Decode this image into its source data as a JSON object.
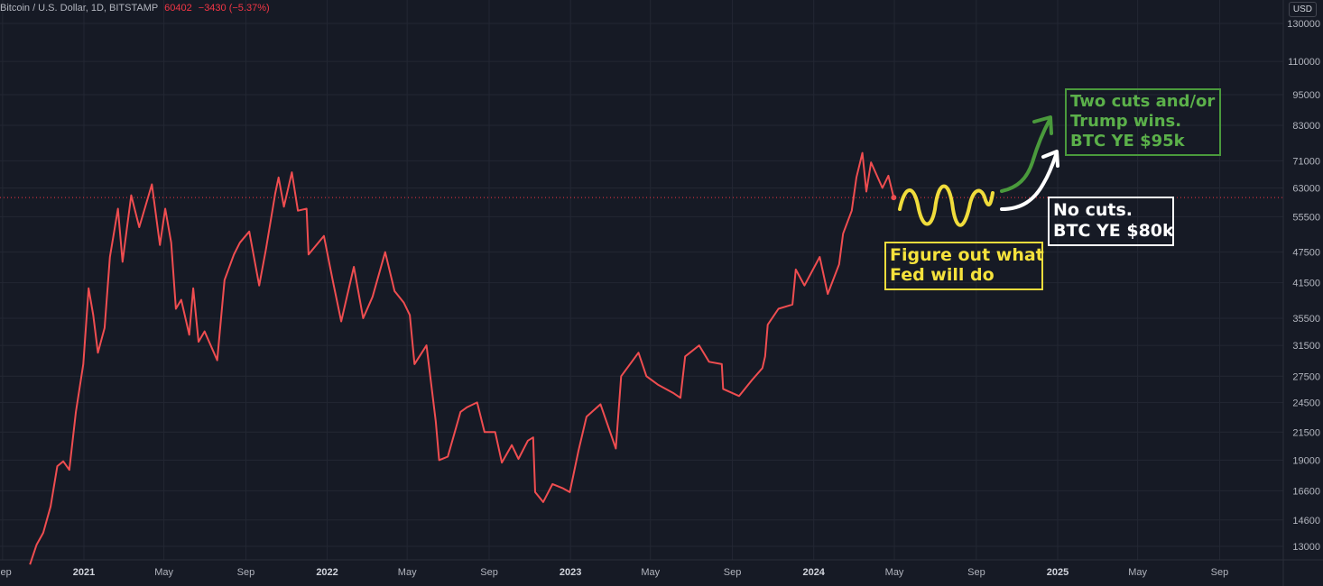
{
  "header": {
    "symbol": "Bitcoin / U.S. Dollar, 1D, BITSTAMP",
    "price": "60402",
    "change": "−3430 (−5.37%)"
  },
  "currency": "USD",
  "colors": {
    "background": "#161a25",
    "grid": "#232733",
    "price_line": "#ef4d50",
    "last_price_line": "#f23645",
    "green": "#4a9a3c",
    "yellow": "#f0dc3c",
    "white": "#ffffff"
  },
  "annotations": {
    "green_note": [
      "Two cuts and/or",
      "Trump wins.",
      "BTC YE $95k"
    ],
    "white_note": [
      "No cuts.",
      "BTC YE $80k"
    ],
    "yellow_note": [
      "Figure out what",
      "Fed will do"
    ]
  },
  "chart_data": {
    "type": "line",
    "title": "",
    "xlabel": "",
    "ylabel": "",
    "log_scale": true,
    "ylim": [
      12000,
      150000
    ],
    "xlim": [
      "2020-09-01",
      "2025-11-01"
    ],
    "x_ticks": [
      {
        "date": "2020-09-01",
        "label": "Sep",
        "bold": false
      },
      {
        "date": "2021-01-01",
        "label": "2021",
        "bold": true
      },
      {
        "date": "2021-05-01",
        "label": "May",
        "bold": false
      },
      {
        "date": "2021-09-01",
        "label": "Sep",
        "bold": false
      },
      {
        "date": "2022-01-01",
        "label": "2022",
        "bold": true
      },
      {
        "date": "2022-05-01",
        "label": "May",
        "bold": false
      },
      {
        "date": "2022-09-01",
        "label": "Sep",
        "bold": false
      },
      {
        "date": "2023-01-01",
        "label": "2023",
        "bold": true
      },
      {
        "date": "2023-05-01",
        "label": "May",
        "bold": false
      },
      {
        "date": "2023-09-01",
        "label": "Sep",
        "bold": false
      },
      {
        "date": "2024-01-01",
        "label": "2024",
        "bold": true
      },
      {
        "date": "2024-05-01",
        "label": "May",
        "bold": false
      },
      {
        "date": "2024-09-01",
        "label": "Sep",
        "bold": false
      },
      {
        "date": "2025-01-01",
        "label": "2025",
        "bold": true
      },
      {
        "date": "2025-05-01",
        "label": "May",
        "bold": false
      },
      {
        "date": "2025-09-01",
        "label": "Sep",
        "bold": false
      }
    ],
    "y_ticks": [
      13000,
      14600,
      16600,
      19000,
      21500,
      24500,
      27500,
      31500,
      35500,
      41500,
      47500,
      55500,
      63000,
      71000,
      83000,
      95000,
      110000,
      130000
    ],
    "grid": true,
    "last_price": 60402,
    "series": [
      {
        "points": [
          [
            "2020-10-12",
            12000
          ],
          [
            "2020-10-22",
            13100
          ],
          [
            "2020-11-01",
            13800
          ],
          [
            "2020-11-12",
            15500
          ],
          [
            "2020-11-22",
            18500
          ],
          [
            "2020-12-01",
            18900
          ],
          [
            "2020-12-10",
            18200
          ],
          [
            "2020-12-20",
            23500
          ],
          [
            "2020-12-31",
            29000
          ],
          [
            "2021-01-08",
            40500
          ],
          [
            "2021-01-15",
            36000
          ],
          [
            "2021-01-22",
            30500
          ],
          [
            "2021-02-01",
            34000
          ],
          [
            "2021-02-09",
            46500
          ],
          [
            "2021-02-21",
            57500
          ],
          [
            "2021-02-28",
            45500
          ],
          [
            "2021-03-13",
            61000
          ],
          [
            "2021-03-25",
            53000
          ],
          [
            "2021-04-13",
            64000
          ],
          [
            "2021-04-25",
            49000
          ],
          [
            "2021-05-03",
            57500
          ],
          [
            "2021-05-12",
            49500
          ],
          [
            "2021-05-19",
            37000
          ],
          [
            "2021-05-27",
            38500
          ],
          [
            "2021-06-08",
            33000
          ],
          [
            "2021-06-14",
            40500
          ],
          [
            "2021-06-22",
            32000
          ],
          [
            "2021-07-01",
            33500
          ],
          [
            "2021-07-20",
            29500
          ],
          [
            "2021-07-31",
            42000
          ],
          [
            "2021-08-14",
            47000
          ],
          [
            "2021-08-23",
            49500
          ],
          [
            "2021-09-06",
            52000
          ],
          [
            "2021-09-21",
            41000
          ],
          [
            "2021-10-01",
            48000
          ],
          [
            "2021-10-15",
            61500
          ],
          [
            "2021-10-20",
            66000
          ],
          [
            "2021-10-28",
            58000
          ],
          [
            "2021-11-09",
            67500
          ],
          [
            "2021-11-18",
            57000
          ],
          [
            "2021-12-01",
            57500
          ],
          [
            "2021-12-04",
            47000
          ],
          [
            "2021-12-27",
            51000
          ],
          [
            "2022-01-10",
            41500
          ],
          [
            "2022-01-22",
            35000
          ],
          [
            "2022-02-10",
            44500
          ],
          [
            "2022-02-24",
            35500
          ],
          [
            "2022-03-10",
            39000
          ],
          [
            "2022-03-29",
            47500
          ],
          [
            "2022-04-12",
            40000
          ],
          [
            "2022-04-26",
            38000
          ],
          [
            "2022-05-05",
            36000
          ],
          [
            "2022-05-12",
            29000
          ],
          [
            "2022-05-30",
            31500
          ],
          [
            "2022-06-13",
            22500
          ],
          [
            "2022-06-18",
            19000
          ],
          [
            "2022-07-01",
            19300
          ],
          [
            "2022-07-20",
            23500
          ],
          [
            "2022-07-30",
            24000
          ],
          [
            "2022-08-14",
            24500
          ],
          [
            "2022-08-25",
            21500
          ],
          [
            "2022-09-10",
            21500
          ],
          [
            "2022-09-20",
            18800
          ],
          [
            "2022-10-05",
            20300
          ],
          [
            "2022-10-15",
            19100
          ],
          [
            "2022-10-29",
            20700
          ],
          [
            "2022-11-06",
            21000
          ],
          [
            "2022-11-09",
            16500
          ],
          [
            "2022-11-21",
            15800
          ],
          [
            "2022-12-05",
            17100
          ],
          [
            "2022-12-20",
            16800
          ],
          [
            "2022-12-31",
            16500
          ],
          [
            "2023-01-13",
            19800
          ],
          [
            "2023-01-25",
            23000
          ],
          [
            "2023-02-15",
            24300
          ],
          [
            "2023-03-10",
            20000
          ],
          [
            "2023-03-18",
            27500
          ],
          [
            "2023-04-13",
            30500
          ],
          [
            "2023-04-25",
            27500
          ],
          [
            "2023-05-12",
            26500
          ],
          [
            "2023-06-05",
            25500
          ],
          [
            "2023-06-15",
            25000
          ],
          [
            "2023-06-22",
            30000
          ],
          [
            "2023-07-13",
            31500
          ],
          [
            "2023-07-28",
            29300
          ],
          [
            "2023-08-16",
            29000
          ],
          [
            "2023-08-18",
            26000
          ],
          [
            "2023-09-11",
            25200
          ],
          [
            "2023-09-30",
            27000
          ],
          [
            "2023-10-16",
            28500
          ],
          [
            "2023-10-20",
            30000
          ],
          [
            "2023-10-24",
            34500
          ],
          [
            "2023-11-09",
            37000
          ],
          [
            "2023-11-30",
            37700
          ],
          [
            "2023-12-05",
            44000
          ],
          [
            "2023-12-18",
            41000
          ],
          [
            "2024-01-10",
            46500
          ],
          [
            "2024-01-22",
            39500
          ],
          [
            "2024-02-08",
            45000
          ],
          [
            "2024-02-14",
            51500
          ],
          [
            "2024-02-27",
            57000
          ],
          [
            "2024-03-05",
            66000
          ],
          [
            "2024-03-14",
            73500
          ],
          [
            "2024-03-20",
            62000
          ],
          [
            "2024-03-27",
            70500
          ],
          [
            "2024-04-13",
            63000
          ],
          [
            "2024-04-22",
            66500
          ],
          [
            "2024-04-30",
            60400
          ]
        ]
      }
    ]
  }
}
